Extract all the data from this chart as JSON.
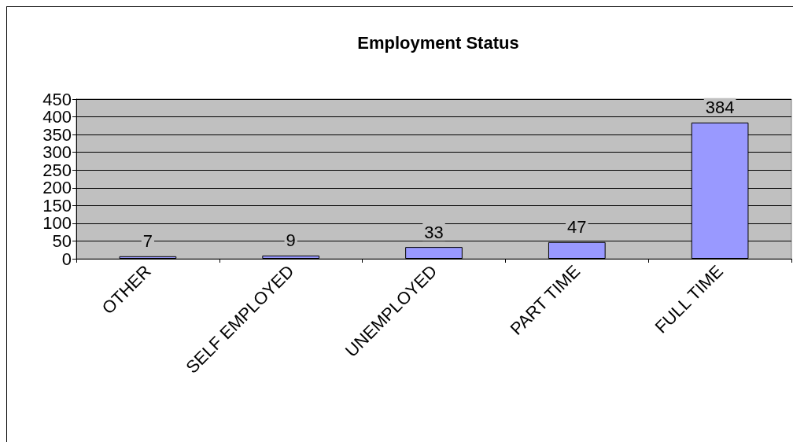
{
  "chart_data": {
    "type": "bar",
    "title": "Employment Status",
    "categories": [
      "OTHER",
      "SELF EMPLOYED",
      "UNEMPLOYED",
      "PART TIME",
      "FULL TIME"
    ],
    "series": [
      {
        "color": "#9999ff",
        "values": [
          7,
          9,
          33,
          47,
          384
        ]
      }
    ],
    "ylim": [
      0,
      450
    ],
    "yticks": [
      0,
      50,
      100,
      150,
      200,
      250,
      300,
      350,
      400,
      450
    ],
    "grid": "y",
    "data_labels": true
  }
}
